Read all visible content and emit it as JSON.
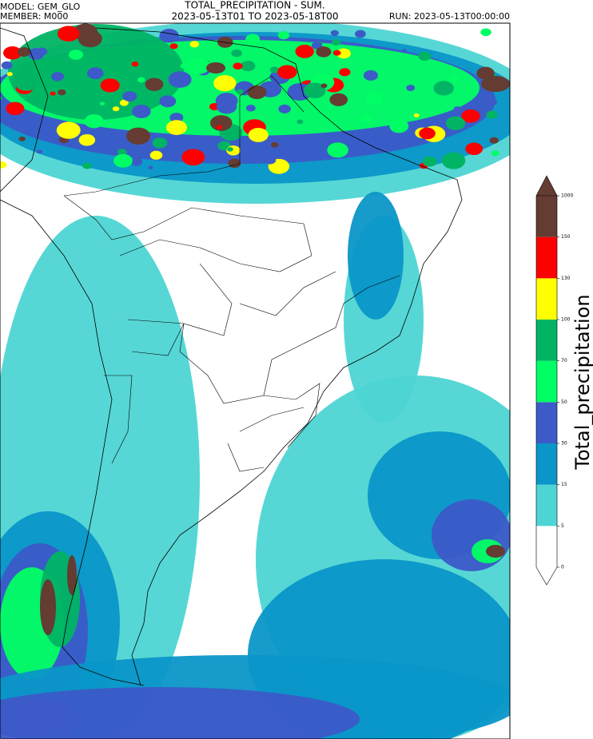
{
  "header": {
    "model": "MODEL: GEM_GLO",
    "member": "MEMBER: M000",
    "title": "TOTAL_PRECIPITATION - SUM.",
    "period": "2023-05-13T01 TO 2023-05-18T00",
    "run": "RUN: 2023-05-13T00:00:00"
  },
  "legend": {
    "title": "Total_precipitation",
    "ticks": [
      0,
      5,
      15,
      30,
      50,
      70,
      100,
      130,
      150,
      1000
    ],
    "colors": [
      "#ffffff",
      "#4dd5d3",
      "#0a96c8",
      "#3c5ac8",
      "#00ff64",
      "#00b464",
      "#ffff00",
      "#ff0000",
      "#643c32"
    ]
  }
}
